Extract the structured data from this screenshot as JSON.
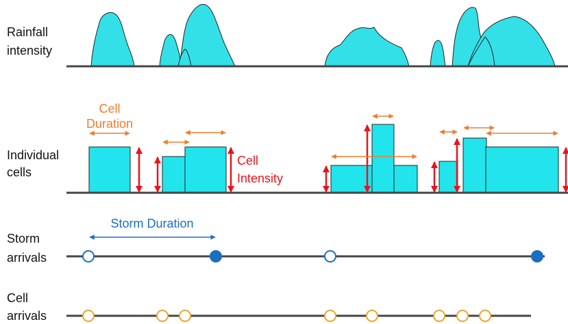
{
  "rows": [
    {
      "label": [
        "Rainfall",
        "intensity"
      ]
    },
    {
      "label": [
        "Individual",
        "cells"
      ]
    },
    {
      "label": [
        "Storm",
        "arrivals"
      ]
    },
    {
      "label": [
        "Cell",
        "arrivals"
      ]
    }
  ],
  "annotations": {
    "cell_duration": [
      "Cell",
      "Duration"
    ],
    "cell_intensity": [
      "Cell",
      "Intensity"
    ],
    "storm_duration": "Storm Duration"
  }
}
